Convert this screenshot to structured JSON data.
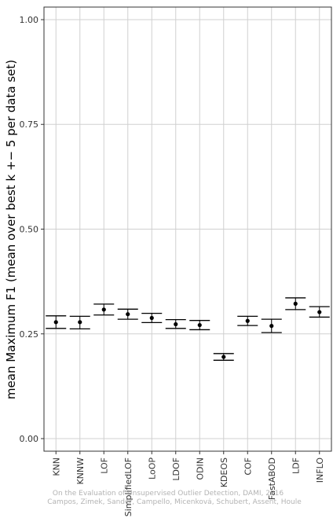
{
  "chart_data": {
    "type": "errorbar",
    "ylabel": "mean Maximum F1 (mean over best k +− 5 per data set)",
    "xlabel": "",
    "ylim": [
      -0.03,
      1.03
    ],
    "y_ticks": [
      0.0,
      0.25,
      0.5,
      0.75,
      1.0
    ],
    "y_tick_labels": [
      "0.00",
      "0.25",
      "0.50",
      "0.75",
      "1.00"
    ],
    "grid": true,
    "categories": [
      "KNN",
      "KNNW",
      "LOF",
      "SimplifiedLOF",
      "LoOP",
      "LDOF",
      "ODIN",
      "KDEOS",
      "COF",
      "FastABOD",
      "LDF",
      "INFLO"
    ],
    "values": [
      0.278,
      0.278,
      0.308,
      0.297,
      0.288,
      0.273,
      0.271,
      0.195,
      0.281,
      0.269,
      0.322,
      0.302
    ],
    "lower": [
      0.263,
      0.262,
      0.295,
      0.285,
      0.277,
      0.263,
      0.26,
      0.187,
      0.27,
      0.253,
      0.308,
      0.29
    ],
    "upper": [
      0.293,
      0.292,
      0.321,
      0.309,
      0.299,
      0.284,
      0.282,
      0.203,
      0.292,
      0.285,
      0.336,
      0.315
    ]
  },
  "watermark": {
    "line1": "On the Evaluation of Unsupervised Outlier Detection, DAMI, 2016",
    "line2": "Campos, Zimek, Sander, Campello, Micenková, Schubert, Assent, Houle"
  },
  "colors": {
    "grid": "#d0d0d0",
    "axis": "#333333",
    "marks": "#000000"
  }
}
